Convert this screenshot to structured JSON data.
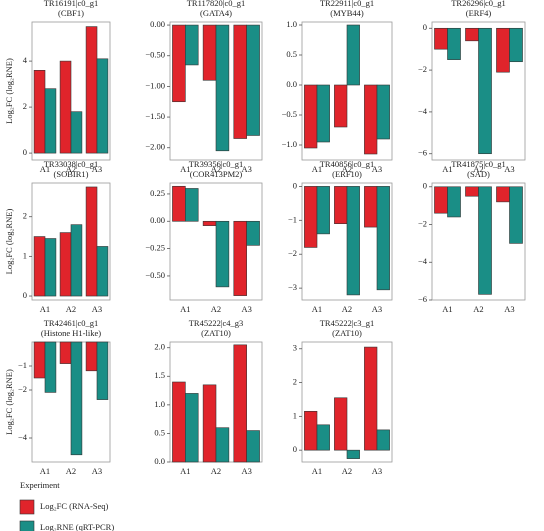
{
  "chart_data": [
    {
      "type": "bar",
      "title": "TR16191|c0_g1",
      "subtitle": "(CBF1)",
      "ylabel": "Log₂FC (log₂RNE)",
      "categories": [
        "A1",
        "A2",
        "A3"
      ],
      "series": [
        {
          "name": "Log₂FC (RNA-Seq)",
          "color": "#e0242b",
          "values": [
            3.6,
            4.0,
            5.5
          ]
        },
        {
          "name": "Log₂RNE (qRT-PCR)",
          "color": "#1a8e86",
          "values": [
            2.8,
            1.8,
            4.1
          ]
        }
      ],
      "ylim": [
        -0.3,
        5.7
      ],
      "yticks": [
        0,
        2,
        4
      ]
    },
    {
      "type": "bar",
      "title": "TR117820|c0_g1",
      "subtitle": "(GATA4)",
      "categories": [
        "A1",
        "A2",
        "A3"
      ],
      "series": [
        {
          "color": "#e0242b",
          "values": [
            -1.25,
            -0.9,
            -1.85
          ]
        },
        {
          "color": "#1a8e86",
          "values": [
            -0.65,
            -2.05,
            -1.8
          ]
        }
      ],
      "ylim": [
        -2.2,
        0.05
      ],
      "yticks": [
        {
          "value": 0,
          "label": "0.00"
        },
        {
          "value": -0.5,
          "label": "−0.50"
        },
        {
          "value": -1,
          "label": "−1.00"
        },
        {
          "value": -1.5,
          "label": "−1.50"
        },
        {
          "value": -2,
          "label": "−2.00"
        }
      ]
    },
    {
      "type": "bar",
      "title": "TR22911|c0_g1",
      "subtitle": "(MYB44)",
      "categories": [
        "A1",
        "A2",
        "A3"
      ],
      "series": [
        {
          "color": "#e0242b",
          "values": [
            -1.05,
            -0.7,
            -1.15
          ]
        },
        {
          "color": "#1a8e86",
          "values": [
            -0.95,
            1.0,
            -0.9
          ]
        }
      ],
      "ylim": [
        -1.25,
        1.05
      ],
      "yticks": [
        {
          "value": 1,
          "label": "1.0"
        },
        0.5,
        {
          "value": 0,
          "label": "0.0"
        },
        {
          "value": -0.5,
          "label": "−0.5"
        },
        {
          "value": -1,
          "label": "−1.0"
        }
      ]
    },
    {
      "type": "bar",
      "title": "TR26296|c0_g1",
      "subtitle": "(ERF4)",
      "categories": [
        "A1",
        "A2",
        "A3"
      ],
      "series": [
        {
          "color": "#e0242b",
          "values": [
            -1.0,
            -0.6,
            -2.1
          ]
        },
        {
          "color": "#1a8e86",
          "values": [
            -1.5,
            -6.0,
            -1.6
          ]
        }
      ],
      "ylim": [
        -6.3,
        0.3
      ],
      "yticks": [
        0,
        {
          "value": -2,
          "label": "−2"
        },
        {
          "value": -4,
          "label": "−4"
        },
        {
          "value": -6,
          "label": "−6"
        }
      ]
    },
    {
      "type": "bar",
      "title": "TR33038|c0_g1",
      "subtitle": "(SOBIR1)",
      "ylabel": "Log₂FC (log₂RNE)",
      "categories": [
        "A1",
        "A2",
        "A3"
      ],
      "series": [
        {
          "color": "#e0242b",
          "values": [
            1.5,
            1.6,
            2.75
          ]
        },
        {
          "color": "#1a8e86",
          "values": [
            1.45,
            1.8,
            1.25
          ]
        }
      ],
      "ylim": [
        -0.1,
        2.85
      ],
      "yticks": [
        0,
        1,
        2
      ]
    },
    {
      "type": "bar",
      "title": "TR39356|c0_g1",
      "subtitle": "(COR413PM2)",
      "categories": [
        "A1",
        "A2",
        "A3"
      ],
      "series": [
        {
          "color": "#e0242b",
          "values": [
            0.32,
            -0.04,
            -0.68
          ]
        },
        {
          "color": "#1a8e86",
          "values": [
            0.3,
            -0.6,
            -0.22
          ]
        }
      ],
      "ylim": [
        -0.72,
        0.35
      ],
      "yticks": [
        0.25,
        {
          "value": 0,
          "label": "0.00"
        },
        {
          "value": -0.25,
          "label": "−0.25"
        },
        {
          "value": -0.5,
          "label": "−0.50"
        }
      ]
    },
    {
      "type": "bar",
      "title": "TR40856|c0_g1",
      "subtitle": "(ERF10)",
      "categories": [
        "A1",
        "A2",
        "A3"
      ],
      "series": [
        {
          "color": "#e0242b",
          "values": [
            -1.8,
            -1.1,
            -1.2
          ]
        },
        {
          "color": "#1a8e86",
          "values": [
            -1.4,
            -3.2,
            -3.05
          ]
        }
      ],
      "ylim": [
        -3.35,
        0.1
      ],
      "yticks": [
        0,
        {
          "value": -1,
          "label": "−1"
        },
        {
          "value": -2,
          "label": "−2"
        },
        {
          "value": -3,
          "label": "−3"
        }
      ]
    },
    {
      "type": "bar",
      "title": "TR41875|c0_g1",
      "subtitle": "(SAD)",
      "categories": [
        "A1",
        "A2",
        "A3"
      ],
      "series": [
        {
          "color": "#e0242b",
          "values": [
            -1.4,
            -0.5,
            -0.8
          ]
        },
        {
          "color": "#1a8e86",
          "values": [
            -1.6,
            -5.7,
            -3.0
          ]
        }
      ],
      "ylim": [
        -6,
        0.2
      ],
      "yticks": [
        0,
        {
          "value": -2,
          "label": "−2"
        },
        {
          "value": -4,
          "label": "−4"
        },
        {
          "value": -6,
          "label": "−6"
        }
      ]
    },
    {
      "type": "bar",
      "title": "TR42461|c0_g1",
      "subtitle": "(Histone H1-like)",
      "ylabel": "Log₂FC (log₂RNE)",
      "categories": [
        "A1",
        "A2",
        "A3"
      ],
      "series": [
        {
          "color": "#e0242b",
          "values": [
            -1.5,
            -0.9,
            -1.2
          ]
        },
        {
          "color": "#1a8e86",
          "values": [
            -2.1,
            -4.7,
            -2.4
          ]
        }
      ],
      "ylim": [
        -5,
        0
      ],
      "yticks": [
        {
          "value": -1,
          "label": "−1"
        },
        {
          "value": -2,
          "label": "−2"
        },
        {
          "value": -4,
          "label": "−4"
        }
      ]
    },
    {
      "type": "bar",
      "title": "TR45222|c4_g3",
      "subtitle": "(ZAT10)",
      "categories": [
        "A1",
        "A2",
        "A3"
      ],
      "series": [
        {
          "color": "#e0242b",
          "values": [
            1.4,
            1.35,
            2.05
          ]
        },
        {
          "color": "#1a8e86",
          "values": [
            1.2,
            0.6,
            0.55
          ]
        }
      ],
      "ylim": [
        0,
        2.1
      ],
      "yticks": [
        {
          "value": 0,
          "label": "0.0"
        },
        0.5,
        {
          "value": 1,
          "label": "1.0"
        },
        1.5,
        {
          "value": 2,
          "label": "2.0"
        }
      ]
    },
    {
      "type": "bar",
      "title": "TR45222|c3_g1",
      "subtitle": "(ZAT10)",
      "categories": [
        "A1",
        "A2",
        "A3"
      ],
      "series": [
        {
          "color": "#e0242b",
          "values": [
            1.15,
            1.55,
            3.05
          ]
        },
        {
          "color": "#1a8e86",
          "values": [
            0.75,
            -0.25,
            0.6
          ]
        }
      ],
      "ylim": [
        -0.35,
        3.2
      ],
      "yticks": [
        0,
        1,
        2,
        3
      ]
    }
  ],
  "legend": {
    "title": "Experiment"
  }
}
